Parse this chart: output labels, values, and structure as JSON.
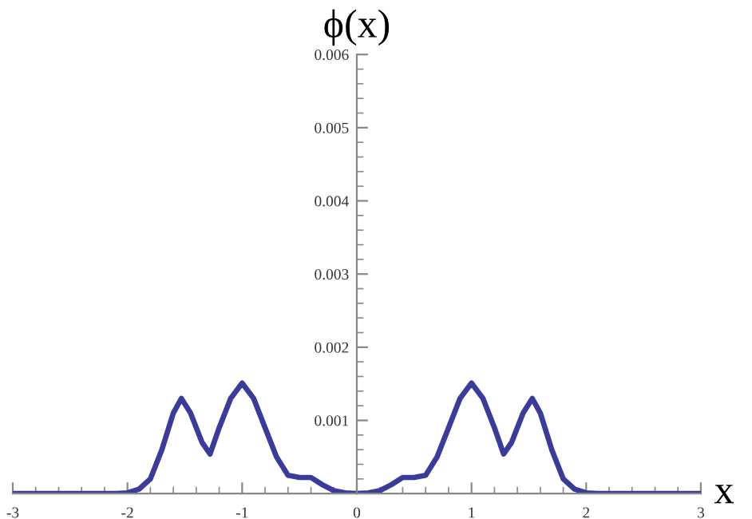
{
  "chart_data": {
    "type": "line",
    "xlabel": "x",
    "ylabel": "ϕ(x)",
    "xlim": [
      -3,
      3
    ],
    "ylim": [
      0,
      0.006
    ],
    "xticks": [
      -3,
      -2,
      -1,
      0,
      1,
      2,
      3
    ],
    "yticks": [
      0.001,
      0.002,
      0.003,
      0.004,
      0.005,
      0.006
    ],
    "grid": false,
    "legend": false,
    "marker": "none",
    "line_style": "solid",
    "series": [
      {
        "color": "#3b3b9b",
        "x": [
          -3,
          -2.1,
          -2.0,
          -1.9,
          -1.8,
          -1.7,
          -1.6,
          -1.53,
          -1.45,
          -1.35,
          -1.28,
          -1.2,
          -1.1,
          -1.0,
          -0.9,
          -0.8,
          -0.7,
          -0.6,
          -0.5,
          -0.4,
          -0.3,
          -0.2,
          -0.1,
          0,
          0.1,
          0.2,
          0.3,
          0.4,
          0.5,
          0.6,
          0.7,
          0.8,
          0.9,
          1.0,
          1.1,
          1.2,
          1.28,
          1.35,
          1.45,
          1.53,
          1.6,
          1.7,
          1.8,
          1.9,
          2.0,
          2.1,
          3
        ],
        "values": [
          0,
          0,
          1e-05,
          6e-05,
          0.0002,
          0.0006,
          0.0011,
          0.0013,
          0.0011,
          0.0007,
          0.00054,
          0.0009,
          0.0013,
          0.00151,
          0.0013,
          0.0009,
          0.0005,
          0.00025,
          0.00022,
          0.00022,
          0.00012,
          4e-05,
          1e-05,
          0,
          1e-05,
          4e-05,
          0.00012,
          0.00022,
          0.00022,
          0.00025,
          0.0005,
          0.0009,
          0.0013,
          0.00151,
          0.0013,
          0.0009,
          0.00054,
          0.0007,
          0.0011,
          0.0013,
          0.0011,
          0.0006,
          0.0002,
          6e-05,
          1e-05,
          0,
          0
        ]
      }
    ]
  }
}
